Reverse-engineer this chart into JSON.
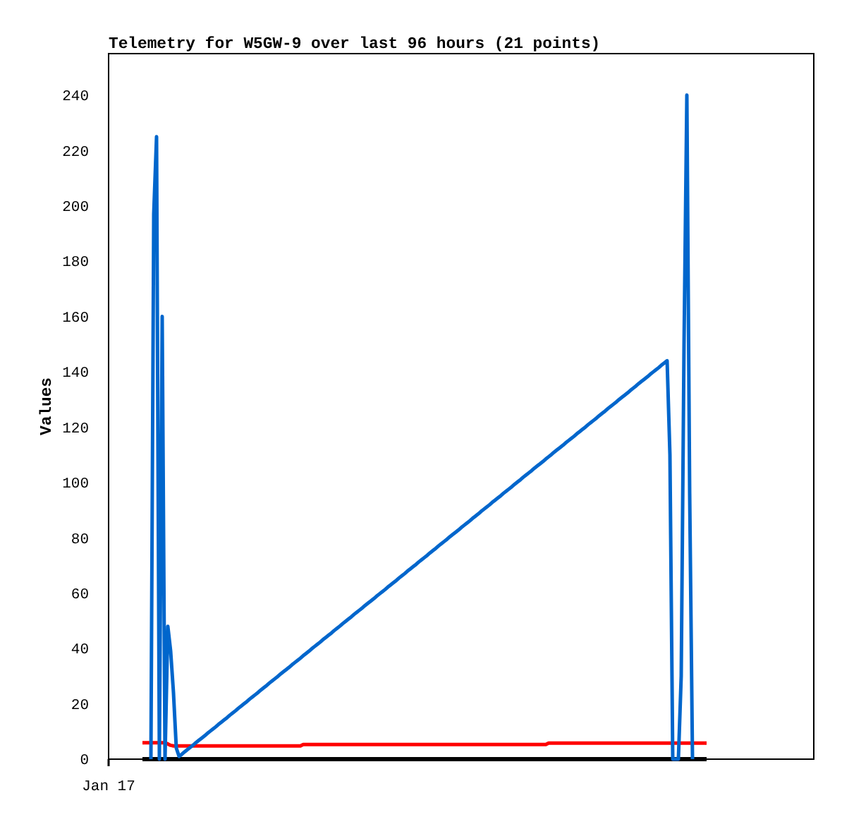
{
  "chart_data": {
    "type": "line",
    "title": "Telemetry for W5GW-9 over last 96 hours (21 points)",
    "ylabel": "Values",
    "categories": [
      "Jan 17",
      null,
      null,
      null,
      null,
      null,
      null,
      null,
      null,
      null,
      null,
      null,
      null,
      null,
      null,
      null,
      null,
      null,
      null,
      null,
      null,
      null,
      null,
      null,
      null,
      null,
      null,
      null,
      null,
      null,
      null,
      null,
      null,
      null,
      null,
      null,
      null,
      null,
      null,
      null,
      null,
      null,
      null,
      null,
      null,
      null,
      null,
      null,
      null,
      null,
      null,
      null,
      null,
      null,
      null,
      null,
      null,
      null,
      null,
      null,
      null,
      null,
      null,
      null,
      null,
      null,
      null,
      null,
      null,
      null,
      null,
      null,
      null,
      null,
      null,
      null,
      null,
      null,
      null,
      null,
      null,
      null,
      null,
      null,
      null,
      null,
      null,
      null,
      null,
      null,
      null,
      null,
      null,
      null,
      null,
      null,
      null,
      null,
      null,
      null,
      null,
      null,
      null,
      null,
      null,
      null,
      null,
      null,
      null,
      null,
      null,
      null,
      null,
      null,
      null,
      null,
      null,
      null,
      null,
      null,
      null,
      null,
      null,
      null,
      null,
      null,
      null,
      null,
      null,
      null,
      null,
      null,
      null,
      null,
      null,
      null,
      null,
      null,
      null,
      null,
      null,
      null,
      null,
      null,
      null,
      null,
      null,
      null,
      null,
      null,
      null,
      null,
      null,
      null,
      null,
      null,
      null,
      null,
      null,
      null,
      null,
      null,
      null,
      null,
      null,
      null,
      null,
      null,
      null,
      null,
      null,
      null,
      null,
      null,
      null,
      null,
      null,
      null,
      null,
      null,
      null,
      null,
      null,
      null,
      null,
      null,
      null,
      null,
      null,
      null,
      null,
      null,
      null,
      null,
      null,
      null,
      null,
      null,
      null,
      null,
      null,
      null,
      null,
      null,
      null,
      null,
      null,
      null,
      null,
      null,
      null,
      null,
      null,
      null,
      null,
      null,
      null,
      null,
      null,
      null,
      null,
      null,
      null,
      null,
      null,
      null,
      null,
      null,
      null,
      null,
      null,
      null,
      null,
      null,
      null,
      null,
      null,
      null,
      null,
      null,
      null,
      null,
      null,
      null,
      null,
      null,
      null,
      null,
      null,
      null,
      null
    ],
    "ylim": [
      0,
      255
    ],
    "yticks": [
      0,
      20,
      40,
      60,
      80,
      100,
      120,
      140,
      160,
      180,
      200,
      220,
      240
    ],
    "series": [
      {
        "color": "#ff0000",
        "values": [
          null,
          null,
          null,
          null,
          null,
          null,
          null,
          null,
          null,
          null,
          null,
          null,
          5.9,
          5.9,
          5.9,
          5.9,
          5.9,
          5.9,
          5.9,
          5.9,
          5.9,
          5.5,
          5.0,
          4.8,
          4.8,
          4.8,
          4.8,
          4.8,
          4.8,
          4.8,
          4.8,
          4.8,
          4.8,
          4.8,
          4.8,
          4.8,
          4.8,
          4.8,
          4.8,
          4.8,
          4.8,
          4.8,
          4.8,
          4.8,
          4.8,
          4.8,
          4.8,
          4.8,
          4.8,
          4.8,
          4.8,
          4.8,
          4.8,
          4.8,
          4.8,
          4.8,
          4.8,
          4.8,
          4.8,
          4.8,
          4.8,
          4.8,
          4.8,
          4.8,
          4.8,
          4.8,
          4.8,
          4.8,
          4.8,
          5.3,
          5.3,
          5.3,
          5.3,
          5.3,
          5.3,
          5.3,
          5.3,
          5.3,
          5.3,
          5.3,
          5.3,
          5.3,
          5.3,
          5.3,
          5.3,
          5.3,
          5.3,
          5.3,
          5.3,
          5.3,
          5.3,
          5.3,
          5.3,
          5.3,
          5.3,
          5.3,
          5.3,
          5.3,
          5.3,
          5.3,
          5.3,
          5.3,
          5.3,
          5.3,
          5.3,
          5.3,
          5.3,
          5.3,
          5.3,
          5.3,
          5.3,
          5.3,
          5.3,
          5.3,
          5.3,
          5.3,
          5.3,
          5.3,
          5.3,
          5.3,
          5.3,
          5.3,
          5.3,
          5.3,
          5.3,
          5.3,
          5.3,
          5.3,
          5.3,
          5.3,
          5.3,
          5.3,
          5.3,
          5.3,
          5.3,
          5.3,
          5.3,
          5.3,
          5.3,
          5.3,
          5.3,
          5.3,
          5.3,
          5.3,
          5.3,
          5.3,
          5.3,
          5.3,
          5.3,
          5.3,
          5.3,
          5.3,
          5.3,
          5.3,
          5.3,
          5.3,
          5.8,
          5.8,
          5.8,
          5.8,
          5.8,
          5.8,
          5.8,
          5.8,
          5.8,
          5.8,
          5.8,
          5.8,
          5.8,
          5.8,
          5.8,
          5.8,
          5.8,
          5.8,
          5.8,
          5.8,
          5.8,
          5.8,
          5.8,
          5.8,
          5.8,
          5.8,
          5.8,
          5.8,
          5.8,
          5.8,
          5.8,
          5.8,
          5.8,
          5.8,
          5.8,
          5.8,
          5.8,
          5.8,
          5.8,
          5.8,
          5.8,
          5.8,
          5.8,
          5.8,
          5.8,
          5.8,
          5.8,
          5.8,
          5.8,
          5.8,
          5.8,
          5.8,
          5.8,
          5.8,
          5.8,
          5.8,
          5.8,
          null,
          null,
          null,
          null,
          null,
          null,
          null,
          null,
          null,
          null,
          null,
          null,
          null,
          null,
          null,
          null,
          null,
          null,
          null,
          null,
          null,
          null,
          null,
          null,
          null,
          null,
          null,
          null,
          null,
          null,
          null,
          null,
          null,
          null,
          null,
          null,
          null,
          null
        ]
      },
      {
        "color": "#000000",
        "values": [
          null,
          null,
          null,
          null,
          null,
          null,
          null,
          null,
          null,
          null,
          null,
          null,
          0,
          0,
          0,
          0,
          0,
          0,
          0,
          0,
          0,
          0,
          0,
          0,
          0,
          0,
          0,
          0,
          0,
          0,
          0,
          0,
          0,
          0,
          0,
          0,
          0,
          0,
          0,
          0,
          0,
          0,
          0,
          0,
          0,
          0,
          0,
          0,
          0,
          0,
          0,
          0,
          0,
          0,
          0,
          0,
          0,
          0,
          0,
          0,
          0,
          0,
          0,
          0,
          0,
          0,
          0,
          0,
          0,
          0,
          0,
          0,
          0,
          0,
          0,
          0,
          0,
          0,
          0,
          0,
          0,
          0,
          0,
          0,
          0,
          0,
          0,
          0,
          0,
          0,
          0,
          0,
          0,
          0,
          0,
          0,
          0,
          0,
          0,
          0,
          0,
          0,
          0,
          0,
          0,
          0,
          0,
          0,
          0,
          0,
          0,
          0,
          0,
          0,
          0,
          0,
          0,
          0,
          0,
          0,
          0,
          0,
          0,
          0,
          0,
          0,
          0,
          0,
          0,
          0,
          0,
          0,
          0,
          0,
          0,
          0,
          0,
          0,
          0,
          0,
          0,
          0,
          0,
          0,
          0,
          0,
          0,
          0,
          0,
          0,
          0,
          0,
          0,
          0,
          0,
          0,
          0,
          0,
          0,
          0,
          0,
          0,
          0,
          0,
          0,
          0,
          0,
          0,
          0,
          0,
          0,
          0,
          0,
          0,
          0,
          0,
          0,
          0,
          0,
          0,
          0,
          0,
          0,
          0,
          0,
          0,
          0,
          0,
          0,
          0,
          0,
          0,
          0,
          0,
          0,
          0,
          0,
          0,
          0,
          0,
          0,
          0,
          0,
          0,
          0,
          0,
          0,
          0,
          0,
          0,
          0,
          0,
          0,
          null,
          null,
          null,
          null,
          null,
          null,
          null,
          null,
          null,
          null,
          null,
          null,
          null,
          null,
          null,
          null,
          null,
          null,
          null,
          null,
          null,
          null,
          null,
          null,
          null,
          null,
          null,
          null,
          null,
          null,
          null,
          null,
          null,
          null,
          null,
          null,
          null,
          null
        ]
      },
      {
        "color": "#0066cc",
        "values": [
          null,
          null,
          null,
          null,
          null,
          null,
          null,
          null,
          null,
          null,
          null,
          null,
          null,
          null,
          null,
          0,
          197,
          225,
          0,
          160,
          0,
          48,
          39,
          24,
          4,
          1,
          1.8,
          2.7,
          3.5,
          4.3,
          5.1,
          6.0,
          6.8,
          7.6,
          8.4,
          9.3,
          10.1,
          10.9,
          11.7,
          12.6,
          13.4,
          14.2,
          15.0,
          15.9,
          16.7,
          17.5,
          18.4,
          19.2,
          20.0,
          20.8,
          21.7,
          22.5,
          23.3,
          24.1,
          25.0,
          25.8,
          26.6,
          27.5,
          28.3,
          29.1,
          29.9,
          30.8,
          31.6,
          32.4,
          33.2,
          34.1,
          34.9,
          35.7,
          36.5,
          37.4,
          38.2,
          39.0,
          39.9,
          40.7,
          41.5,
          42.3,
          43.2,
          44.0,
          44.8,
          45.6,
          46.5,
          47.3,
          48.1,
          49.0,
          49.8,
          50.6,
          51.4,
          52.3,
          53.1,
          53.9,
          54.7,
          55.6,
          56.4,
          57.2,
          58.0,
          58.9,
          59.7,
          60.5,
          61.3,
          62.2,
          63.0,
          63.8,
          64.6,
          65.5,
          66.3,
          67.1,
          68.0,
          68.8,
          69.6,
          70.4,
          71.3,
          72.1,
          72.9,
          73.7,
          74.6,
          75.4,
          76.2,
          77.1,
          77.9,
          78.7,
          79.5,
          80.4,
          81.2,
          82.0,
          82.8,
          83.7,
          84.5,
          85.3,
          86.1,
          87.0,
          87.8,
          88.6,
          89.5,
          90.3,
          91.1,
          91.9,
          92.8,
          93.6,
          94.4,
          95.2,
          96.1,
          96.9,
          97.7,
          98.5,
          99.4,
          100.2,
          101.0,
          101.9,
          102.7,
          103.5,
          104.3,
          105.2,
          106.0,
          106.8,
          107.6,
          108.5,
          109.3,
          110.1,
          111.0,
          111.8,
          112.6,
          113.4,
          114.3,
          115.1,
          115.9,
          116.7,
          117.6,
          118.4,
          119.2,
          120.0,
          120.9,
          121.7,
          122.5,
          123.3,
          124.2,
          125.0,
          125.8,
          126.7,
          127.5,
          128.3,
          129.1,
          130.0,
          130.8,
          131.6,
          132.4,
          133.3,
          134.1,
          134.9,
          135.8,
          136.6,
          137.4,
          138.2,
          139.1,
          139.9,
          140.7,
          141.5,
          142.4,
          143.2,
          144.0,
          110,
          0,
          0,
          0,
          30,
          150,
          240,
          96,
          0,
          null,
          null,
          null,
          null,
          null,
          null,
          null,
          null,
          null,
          null,
          null,
          null,
          null,
          null,
          null,
          null,
          null,
          null,
          null,
          null,
          null,
          null,
          null,
          null,
          null,
          null,
          null,
          null,
          null,
          null,
          null,
          null,
          null,
          null,
          null,
          null,
          null,
          null,
          null,
          null,
          null,
          null,
          null
        ]
      }
    ]
  }
}
